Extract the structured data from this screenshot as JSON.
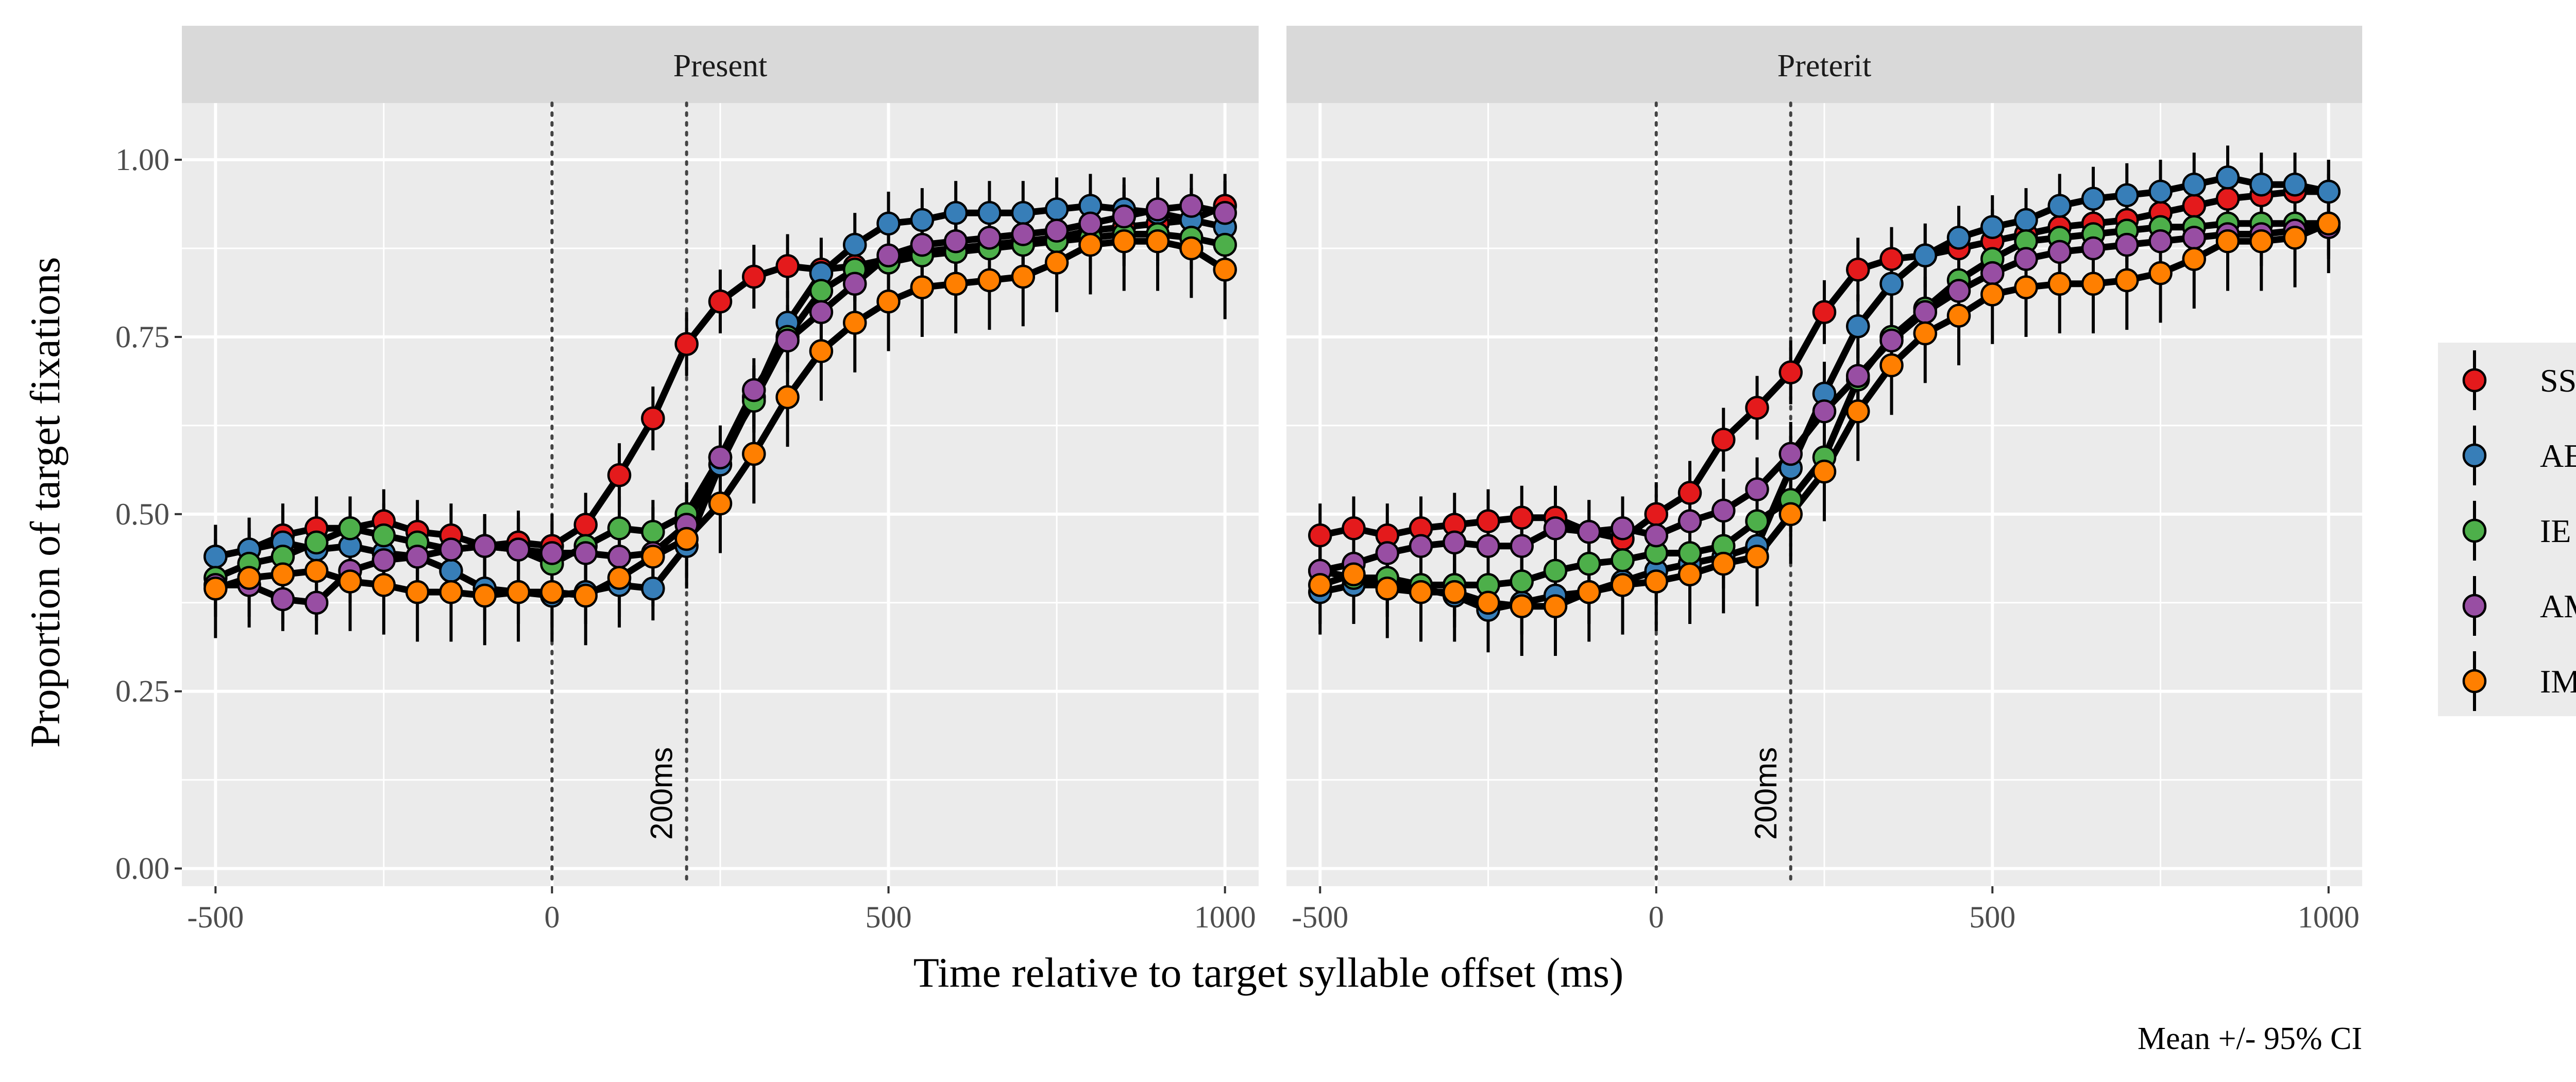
{
  "chart_data": {
    "type": "line",
    "facets": [
      "Present",
      "Preterit"
    ],
    "xlabel": "Time relative to target syllable offset (ms)",
    "ylabel": "Proportion of target fixations",
    "caption": "Mean +/- 95% CI",
    "xlim": [
      -550,
      1050
    ],
    "ylim": [
      -0.025,
      1.08
    ],
    "x_ticks": [
      -500,
      0,
      500,
      1000
    ],
    "x_tick_labels": [
      "-500",
      "0",
      "500",
      "1000"
    ],
    "y_ticks": [
      0,
      0.25,
      0.5,
      0.75,
      1
    ],
    "y_tick_labels": [
      "0.00",
      "0.25",
      "0.50",
      "0.75",
      "1.00"
    ],
    "reference_lines": [
      {
        "x": 0,
        "label": ""
      },
      {
        "x": 200,
        "label": "200ms"
      }
    ],
    "grid": true,
    "legend_position": "right",
    "x": [
      -500,
      -450,
      -400,
      -350,
      -300,
      -250,
      -200,
      -150,
      -100,
      -50,
      0,
      50,
      100,
      150,
      200,
      250,
      300,
      350,
      400,
      450,
      500,
      550,
      600,
      650,
      700,
      750,
      800,
      850,
      900,
      950,
      1000
    ],
    "panels": [
      {
        "facet": "Present",
        "series": [
          {
            "name": "SS",
            "color": "#E41A1C",
            "ci": 0.045,
            "values": [
              0.44,
              0.45,
              0.47,
              0.48,
              0.48,
              0.49,
              0.475,
              0.47,
              0.455,
              0.46,
              0.455,
              0.485,
              0.555,
              0.635,
              0.74,
              0.8,
              0.835,
              0.85,
              0.845,
              0.85,
              0.86,
              0.87,
              0.875,
              0.88,
              0.885,
              0.89,
              0.9,
              0.905,
              0.91,
              0.915,
              0.935
            ]
          },
          {
            "name": "AE",
            "color": "#377EB8",
            "ci": 0.045,
            "values": [
              0.44,
              0.45,
              0.46,
              0.45,
              0.455,
              0.445,
              0.44,
              0.42,
              0.395,
              0.39,
              0.385,
              0.39,
              0.4,
              0.395,
              0.455,
              0.57,
              0.665,
              0.77,
              0.84,
              0.88,
              0.91,
              0.915,
              0.925,
              0.925,
              0.925,
              0.93,
              0.935,
              0.93,
              0.925,
              0.915,
              0.905
            ]
          },
          {
            "name": "IE",
            "color": "#4DAF4A",
            "ci": 0.045,
            "values": [
              0.41,
              0.43,
              0.44,
              0.46,
              0.48,
              0.47,
              0.46,
              0.45,
              0.455,
              0.45,
              0.43,
              0.455,
              0.48,
              0.475,
              0.5,
              0.58,
              0.66,
              0.75,
              0.815,
              0.845,
              0.855,
              0.865,
              0.87,
              0.875,
              0.88,
              0.885,
              0.89,
              0.895,
              0.895,
              0.89,
              0.88
            ]
          },
          {
            "name": "AM",
            "color": "#984EA3",
            "ci": 0.045,
            "values": [
              0.4,
              0.4,
              0.38,
              0.375,
              0.42,
              0.435,
              0.44,
              0.45,
              0.455,
              0.45,
              0.445,
              0.445,
              0.44,
              0.445,
              0.485,
              0.58,
              0.675,
              0.745,
              0.785,
              0.825,
              0.865,
              0.88,
              0.885,
              0.89,
              0.895,
              0.9,
              0.91,
              0.92,
              0.93,
              0.935,
              0.925
            ]
          },
          {
            "name": "IM",
            "color": "#FF7F00",
            "ci": 0.07,
            "values": [
              0.395,
              0.41,
              0.415,
              0.42,
              0.405,
              0.4,
              0.39,
              0.39,
              0.385,
              0.39,
              0.39,
              0.385,
              0.41,
              0.44,
              0.465,
              0.515,
              0.585,
              0.665,
              0.73,
              0.77,
              0.8,
              0.82,
              0.825,
              0.83,
              0.835,
              0.855,
              0.88,
              0.885,
              0.885,
              0.875,
              0.845
            ]
          }
        ]
      },
      {
        "facet": "Preterit",
        "series": [
          {
            "name": "SS",
            "color": "#E41A1C",
            "ci": 0.045,
            "values": [
              0.47,
              0.48,
              0.47,
              0.48,
              0.485,
              0.49,
              0.495,
              0.495,
              0.475,
              0.465,
              0.5,
              0.53,
              0.605,
              0.65,
              0.7,
              0.785,
              0.845,
              0.86,
              0.865,
              0.875,
              0.885,
              0.895,
              0.905,
              0.91,
              0.915,
              0.925,
              0.935,
              0.945,
              0.95,
              0.955,
              0.955
            ]
          },
          {
            "name": "AE",
            "color": "#377EB8",
            "ci": 0.045,
            "values": [
              0.39,
              0.4,
              0.4,
              0.395,
              0.385,
              0.365,
              0.375,
              0.385,
              0.39,
              0.405,
              0.42,
              0.43,
              0.44,
              0.455,
              0.565,
              0.67,
              0.765,
              0.825,
              0.865,
              0.89,
              0.905,
              0.915,
              0.935,
              0.945,
              0.95,
              0.955,
              0.965,
              0.975,
              0.965,
              0.965,
              0.955
            ]
          },
          {
            "name": "IE",
            "color": "#4DAF4A",
            "ci": 0.045,
            "values": [
              0.42,
              0.41,
              0.41,
              0.4,
              0.4,
              0.4,
              0.405,
              0.42,
              0.43,
              0.435,
              0.445,
              0.445,
              0.455,
              0.49,
              0.52,
              0.58,
              0.69,
              0.75,
              0.79,
              0.83,
              0.86,
              0.885,
              0.89,
              0.895,
              0.9,
              0.905,
              0.905,
              0.91,
              0.91,
              0.91,
              0.91
            ]
          },
          {
            "name": "AM",
            "color": "#984EA3",
            "ci": 0.045,
            "values": [
              0.42,
              0.43,
              0.445,
              0.455,
              0.46,
              0.455,
              0.455,
              0.48,
              0.475,
              0.48,
              0.47,
              0.49,
              0.505,
              0.535,
              0.585,
              0.645,
              0.695,
              0.745,
              0.785,
              0.815,
              0.84,
              0.86,
              0.87,
              0.875,
              0.88,
              0.885,
              0.89,
              0.895,
              0.895,
              0.9,
              0.905
            ]
          },
          {
            "name": "IM",
            "color": "#FF7F00",
            "ci": 0.07,
            "values": [
              0.4,
              0.415,
              0.395,
              0.39,
              0.39,
              0.375,
              0.37,
              0.37,
              0.39,
              0.4,
              0.405,
              0.415,
              0.43,
              0.44,
              0.5,
              0.56,
              0.645,
              0.71,
              0.755,
              0.78,
              0.81,
              0.82,
              0.825,
              0.825,
              0.83,
              0.84,
              0.86,
              0.885,
              0.885,
              0.89,
              0.91
            ]
          }
        ]
      }
    ]
  }
}
